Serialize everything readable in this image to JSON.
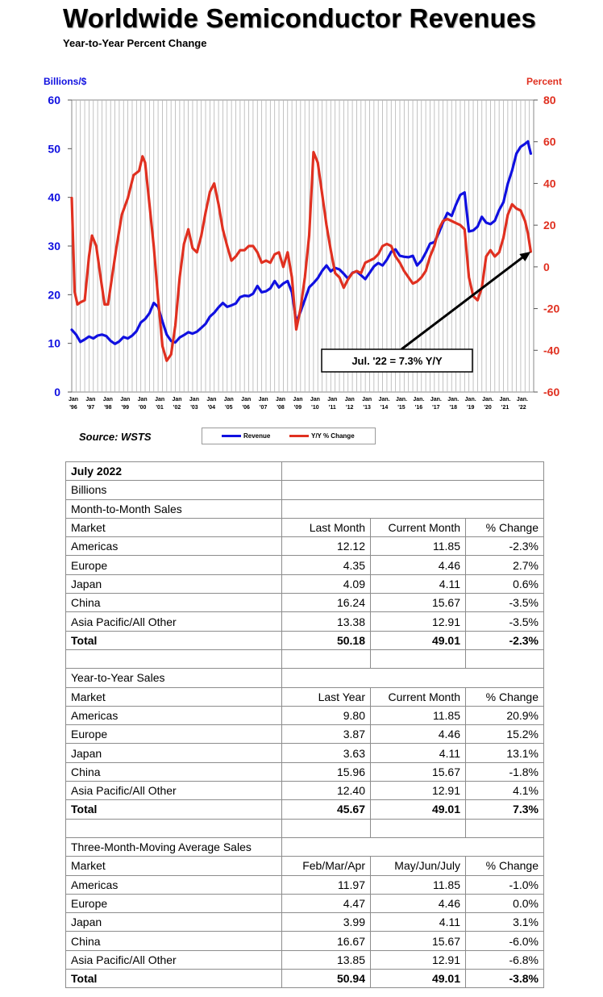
{
  "title": "Worldwide Semiconductor Revenues",
  "subtitle": "Year-to-Year Percent Change",
  "source": "Source: WSTS",
  "chart_data": {
    "type": "line",
    "left_axis": {
      "label": "Billions/$",
      "color": "#1010e0",
      "range": [
        0,
        60
      ],
      "ticks": [
        "0",
        "10",
        "20",
        "30",
        "40",
        "50",
        "60"
      ]
    },
    "right_axis": {
      "label": "Percent",
      "color": "#e03020",
      "range": [
        -60,
        80
      ],
      "ticks": [
        "-60",
        "-40",
        "-20",
        "0",
        "20",
        "40",
        "60",
        "80"
      ]
    },
    "x_ticks": [
      [
        "Jan",
        "'96"
      ],
      [
        "Jan",
        "'97"
      ],
      [
        "Jan",
        "'98"
      ],
      [
        "Jan",
        "'99"
      ],
      [
        "Jan",
        "'00"
      ],
      [
        "Jan",
        "'01"
      ],
      [
        "Jan",
        "'02"
      ],
      [
        "Jan",
        "'03"
      ],
      [
        "Jan",
        "'04"
      ],
      [
        "Jan",
        "'05"
      ],
      [
        "Jan",
        "'06"
      ],
      [
        "Jan",
        "'07"
      ],
      [
        "Jan",
        "'08"
      ],
      [
        "Jan",
        "'09"
      ],
      [
        "Jan",
        "'10"
      ],
      [
        "Jan",
        "'11"
      ],
      [
        "Jan",
        "'12"
      ],
      [
        "Jan",
        "'13"
      ],
      [
        "Jan.",
        "'14"
      ],
      [
        "Jan.",
        "'15"
      ],
      [
        "Jan.",
        "'16"
      ],
      [
        "Jan.",
        "'17"
      ],
      [
        "Jan.",
        "'18"
      ],
      [
        "Jan.",
        "'19"
      ],
      [
        "Jan.",
        "'20"
      ],
      [
        "Jan.",
        "'21"
      ],
      [
        "Jan.",
        "'22"
      ]
    ],
    "x_range": [
      1996.0,
      2022.75
    ],
    "grid": "vertical",
    "series": [
      {
        "name": "Revenue",
        "axis": "left",
        "color": "#1010e0",
        "points": [
          [
            1996.0,
            12.8
          ],
          [
            1996.25,
            11.8
          ],
          [
            1996.5,
            10.3
          ],
          [
            1996.75,
            10.8
          ],
          [
            1997.0,
            11.4
          ],
          [
            1997.25,
            11.0
          ],
          [
            1997.5,
            11.6
          ],
          [
            1997.75,
            11.8
          ],
          [
            1998.0,
            11.5
          ],
          [
            1998.25,
            10.5
          ],
          [
            1998.5,
            9.9
          ],
          [
            1998.75,
            10.4
          ],
          [
            1999.0,
            11.3
          ],
          [
            1999.25,
            11.0
          ],
          [
            1999.5,
            11.6
          ],
          [
            1999.75,
            12.5
          ],
          [
            2000.0,
            14.3
          ],
          [
            2000.25,
            15.0
          ],
          [
            2000.5,
            16.2
          ],
          [
            2000.75,
            18.3
          ],
          [
            2001.0,
            17.5
          ],
          [
            2001.25,
            14.5
          ],
          [
            2001.5,
            11.8
          ],
          [
            2001.75,
            10.5
          ],
          [
            2002.0,
            10.2
          ],
          [
            2002.25,
            11.2
          ],
          [
            2002.5,
            11.7
          ],
          [
            2002.75,
            12.3
          ],
          [
            2003.0,
            12.0
          ],
          [
            2003.25,
            12.4
          ],
          [
            2003.5,
            13.2
          ],
          [
            2003.75,
            14.0
          ],
          [
            2004.0,
            15.5
          ],
          [
            2004.25,
            16.3
          ],
          [
            2004.5,
            17.4
          ],
          [
            2004.75,
            18.3
          ],
          [
            2005.0,
            17.5
          ],
          [
            2005.25,
            17.8
          ],
          [
            2005.5,
            18.2
          ],
          [
            2005.75,
            19.5
          ],
          [
            2006.0,
            19.8
          ],
          [
            2006.25,
            19.7
          ],
          [
            2006.5,
            20.2
          ],
          [
            2006.75,
            21.8
          ],
          [
            2007.0,
            20.5
          ],
          [
            2007.25,
            20.7
          ],
          [
            2007.5,
            21.3
          ],
          [
            2007.75,
            22.8
          ],
          [
            2008.0,
            21.5
          ],
          [
            2008.25,
            22.3
          ],
          [
            2008.5,
            22.8
          ],
          [
            2008.75,
            20.5
          ],
          [
            2009.0,
            14.4
          ],
          [
            2009.25,
            16.5
          ],
          [
            2009.5,
            19.0
          ],
          [
            2009.75,
            21.5
          ],
          [
            2010.0,
            22.4
          ],
          [
            2010.25,
            23.4
          ],
          [
            2010.5,
            24.9
          ],
          [
            2010.75,
            26.0
          ],
          [
            2011.0,
            24.8
          ],
          [
            2011.25,
            25.5
          ],
          [
            2011.5,
            25.2
          ],
          [
            2011.75,
            24.3
          ],
          [
            2012.0,
            23.3
          ],
          [
            2012.25,
            24.5
          ],
          [
            2012.5,
            24.8
          ],
          [
            2012.75,
            24.0
          ],
          [
            2013.0,
            23.2
          ],
          [
            2013.25,
            24.5
          ],
          [
            2013.5,
            25.8
          ],
          [
            2013.75,
            26.5
          ],
          [
            2014.0,
            26.0
          ],
          [
            2014.25,
            27.2
          ],
          [
            2014.5,
            28.8
          ],
          [
            2014.75,
            29.3
          ],
          [
            2015.0,
            28.0
          ],
          [
            2015.25,
            27.8
          ],
          [
            2015.5,
            27.7
          ],
          [
            2015.75,
            28.0
          ],
          [
            2016.0,
            26.0
          ],
          [
            2016.25,
            27.0
          ],
          [
            2016.5,
            28.6
          ],
          [
            2016.75,
            30.5
          ],
          [
            2017.0,
            30.8
          ],
          [
            2017.25,
            32.6
          ],
          [
            2017.5,
            34.8
          ],
          [
            2017.75,
            36.8
          ],
          [
            2018.0,
            36.2
          ],
          [
            2018.25,
            38.5
          ],
          [
            2018.5,
            40.5
          ],
          [
            2018.75,
            41.0
          ],
          [
            2019.0,
            33.0
          ],
          [
            2019.25,
            33.2
          ],
          [
            2019.5,
            34.0
          ],
          [
            2019.75,
            36.0
          ],
          [
            2020.0,
            34.8
          ],
          [
            2020.25,
            34.5
          ],
          [
            2020.5,
            35.2
          ],
          [
            2020.75,
            37.4
          ],
          [
            2021.0,
            39.0
          ],
          [
            2021.25,
            42.8
          ],
          [
            2021.5,
            45.5
          ],
          [
            2021.75,
            49.0
          ],
          [
            2022.0,
            50.4
          ],
          [
            2022.25,
            51.0
          ],
          [
            2022.42,
            51.5
          ],
          [
            2022.5,
            50.2
          ],
          [
            2022.58,
            49.0
          ]
        ]
      },
      {
        "name": "Y/Y % Change",
        "axis": "right",
        "color": "#e03020",
        "points": [
          [
            1996.0,
            33
          ],
          [
            1996.17,
            -12
          ],
          [
            1996.33,
            -18
          ],
          [
            1996.5,
            -17
          ],
          [
            1996.75,
            -16
          ],
          [
            1997.0,
            5
          ],
          [
            1997.17,
            15
          ],
          [
            1997.42,
            10
          ],
          [
            1997.67,
            -5
          ],
          [
            1997.9,
            -18
          ],
          [
            1998.1,
            -18
          ],
          [
            1998.33,
            -5
          ],
          [
            1998.58,
            9
          ],
          [
            1998.9,
            25
          ],
          [
            1999.25,
            33
          ],
          [
            1999.58,
            44
          ],
          [
            1999.9,
            46
          ],
          [
            2000.1,
            53
          ],
          [
            2000.25,
            50
          ],
          [
            2000.5,
            30
          ],
          [
            2000.75,
            10
          ],
          [
            2001.0,
            -15
          ],
          [
            2001.25,
            -38
          ],
          [
            2001.5,
            -45
          ],
          [
            2001.75,
            -42
          ],
          [
            2002.0,
            -28
          ],
          [
            2002.25,
            -5
          ],
          [
            2002.5,
            11
          ],
          [
            2002.75,
            18
          ],
          [
            2003.0,
            9
          ],
          [
            2003.25,
            7
          ],
          [
            2003.5,
            15
          ],
          [
            2003.75,
            26
          ],
          [
            2004.0,
            36
          ],
          [
            2004.25,
            40
          ],
          [
            2004.5,
            30
          ],
          [
            2004.75,
            18
          ],
          [
            2005.0,
            10
          ],
          [
            2005.25,
            3
          ],
          [
            2005.5,
            5
          ],
          [
            2005.75,
            8
          ],
          [
            2006.0,
            8
          ],
          [
            2006.25,
            10
          ],
          [
            2006.5,
            10
          ],
          [
            2006.75,
            7
          ],
          [
            2007.0,
            2
          ],
          [
            2007.25,
            3
          ],
          [
            2007.5,
            2
          ],
          [
            2007.75,
            6
          ],
          [
            2008.0,
            7
          ],
          [
            2008.25,
            0
          ],
          [
            2008.5,
            7
          ],
          [
            2008.75,
            -5
          ],
          [
            2009.0,
            -30
          ],
          [
            2009.25,
            -20
          ],
          [
            2009.5,
            -5
          ],
          [
            2009.75,
            15
          ],
          [
            2010.0,
            55
          ],
          [
            2010.25,
            50
          ],
          [
            2010.5,
            35
          ],
          [
            2010.75,
            20
          ],
          [
            2011.0,
            8
          ],
          [
            2011.25,
            -3
          ],
          [
            2011.5,
            -5
          ],
          [
            2011.75,
            -10
          ],
          [
            2012.0,
            -6
          ],
          [
            2012.25,
            -3
          ],
          [
            2012.5,
            -2
          ],
          [
            2012.75,
            -3
          ],
          [
            2013.0,
            2
          ],
          [
            2013.25,
            3
          ],
          [
            2013.5,
            4
          ],
          [
            2013.75,
            6
          ],
          [
            2014.0,
            10
          ],
          [
            2014.25,
            11
          ],
          [
            2014.5,
            10
          ],
          [
            2014.75,
            5
          ],
          [
            2015.0,
            2
          ],
          [
            2015.25,
            -2
          ],
          [
            2015.5,
            -5
          ],
          [
            2015.75,
            -8
          ],
          [
            2016.0,
            -7
          ],
          [
            2016.25,
            -5
          ],
          [
            2016.5,
            -2
          ],
          [
            2016.75,
            5
          ],
          [
            2017.0,
            10
          ],
          [
            2017.25,
            18
          ],
          [
            2017.5,
            22
          ],
          [
            2017.75,
            23
          ],
          [
            2018.0,
            22
          ],
          [
            2018.25,
            21
          ],
          [
            2018.5,
            20
          ],
          [
            2018.75,
            18
          ],
          [
            2019.0,
            -5
          ],
          [
            2019.25,
            -14
          ],
          [
            2019.5,
            -16
          ],
          [
            2019.75,
            -10
          ],
          [
            2020.0,
            5
          ],
          [
            2020.25,
            8
          ],
          [
            2020.5,
            5
          ],
          [
            2020.75,
            7
          ],
          [
            2021.0,
            14
          ],
          [
            2021.25,
            25
          ],
          [
            2021.5,
            30
          ],
          [
            2021.75,
            28
          ],
          [
            2022.0,
            27
          ],
          [
            2022.25,
            22
          ],
          [
            2022.42,
            16
          ],
          [
            2022.58,
            7.3
          ]
        ]
      }
    ],
    "annotation": {
      "text": "Jul. '22 = 7.3% Y/Y",
      "x": 2022.58,
      "y": 7.3,
      "axis": "right"
    }
  },
  "legend": {
    "revenue": "Revenue",
    "yy": "Y/Y % Change"
  },
  "table": {
    "period": "July 2022",
    "units": "Billions",
    "mtm": {
      "heading": "Month-to-Month Sales",
      "columns": [
        "Market",
        "Last Month",
        "Current Month",
        "% Change"
      ],
      "rows": [
        [
          "Americas",
          "12.12",
          "11.85",
          "-2.3%"
        ],
        [
          "Europe",
          "4.35",
          "4.46",
          "2.7%"
        ],
        [
          "Japan",
          "4.09",
          "4.11",
          "0.6%"
        ],
        [
          "China",
          "16.24",
          "15.67",
          "-3.5%"
        ],
        [
          "Asia Pacific/All Other",
          "13.38",
          "12.91",
          "-3.5%"
        ]
      ],
      "total": [
        "Total",
        "50.18",
        "49.01",
        "-2.3%"
      ]
    },
    "yty": {
      "heading": "Year-to-Year Sales",
      "columns": [
        "Market",
        "Last Year",
        "Current Month",
        "% Change"
      ],
      "rows": [
        [
          "Americas",
          "9.80",
          "11.85",
          "20.9%"
        ],
        [
          "Europe",
          "3.87",
          "4.46",
          "15.2%"
        ],
        [
          "Japan",
          "3.63",
          "4.11",
          "13.1%"
        ],
        [
          "China",
          "15.96",
          "15.67",
          "-1.8%"
        ],
        [
          "Asia Pacific/All Other",
          "12.40",
          "12.91",
          "4.1%"
        ]
      ],
      "total": [
        "Total",
        "45.67",
        "49.01",
        "7.3%"
      ]
    },
    "mavg": {
      "heading": "Three-Month-Moving Average Sales",
      "columns": [
        "Market",
        "Feb/Mar/Apr",
        "May/Jun/July",
        "% Change"
      ],
      "rows": [
        [
          "Americas",
          "11.97",
          "11.85",
          "-1.0%"
        ],
        [
          "Europe",
          "4.47",
          "4.46",
          "0.0%"
        ],
        [
          "Japan",
          "3.99",
          "4.11",
          "3.1%"
        ],
        [
          "China",
          "16.67",
          "15.67",
          "-6.0%"
        ],
        [
          "Asia Pacific/All Other",
          "13.85",
          "12.91",
          "-6.8%"
        ]
      ],
      "total": [
        "Total",
        "50.94",
        "49.01",
        "-3.8%"
      ]
    }
  }
}
